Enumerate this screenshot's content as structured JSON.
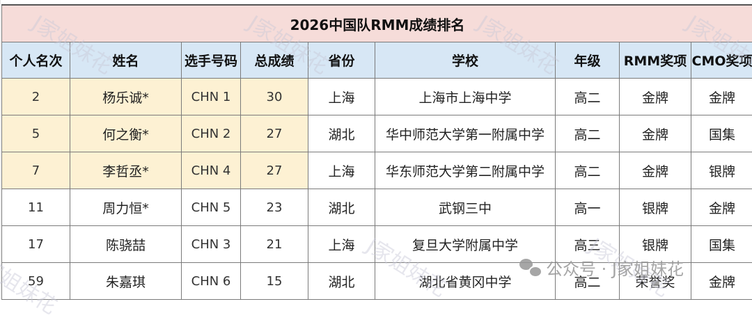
{
  "title": "2026中国队RMM成绩排名",
  "headers": [
    "个人名次",
    "姓名",
    "选手号码",
    "总成绩",
    "省份",
    "学校",
    "年级",
    "RMM奖项",
    "CMO奖项"
  ],
  "rows": [
    {
      "rank": "2",
      "name": "杨乐诚*",
      "id": "CHN 1",
      "score": "30",
      "province": "上海",
      "school": "上海市上海中学",
      "grade": "高二",
      "rmm": "金牌",
      "cmo": "金牌",
      "highlight": true
    },
    {
      "rank": "5",
      "name": "何之衡*",
      "id": "CHN 2",
      "score": "27",
      "province": "湖北",
      "school": "华中师范大学第一附属中学",
      "grade": "高二",
      "rmm": "金牌",
      "cmo": "国集",
      "highlight": true
    },
    {
      "rank": "7",
      "name": "李哲丞*",
      "id": "CHN 4",
      "score": "27",
      "province": "上海",
      "school": "华东师范大学第二附属中学",
      "grade": "高二",
      "rmm": "金牌",
      "cmo": "银牌",
      "highlight": true
    },
    {
      "rank": "11",
      "name": "周力恒*",
      "id": "CHN 5",
      "score": "23",
      "province": "湖北",
      "school": "武钢三中",
      "grade": "高一",
      "rmm": "银牌",
      "cmo": "金牌",
      "highlight": false
    },
    {
      "rank": "17",
      "name": "陈骁喆",
      "id": "CHN 3",
      "score": "21",
      "province": "上海",
      "school": "复旦大学附属中学",
      "grade": "高三",
      "rmm": "银牌",
      "cmo": "国集",
      "highlight": false
    },
    {
      "rank": "59",
      "name": "朱嘉琪",
      "id": "CHN 6",
      "score": "15",
      "province": "湖北",
      "school": "湖北省黄冈中学",
      "grade": "高二",
      "rmm": "荣誉奖",
      "cmo": "金牌",
      "highlight": false
    }
  ],
  "watermark": "J家姐妹花",
  "wechat_label": "公众号 · J家姐妹花",
  "colors": {
    "title_bg": "#f6dcd9",
    "header_bg": "#d7e7f5",
    "highlight_bg": "#fdf1d3"
  }
}
